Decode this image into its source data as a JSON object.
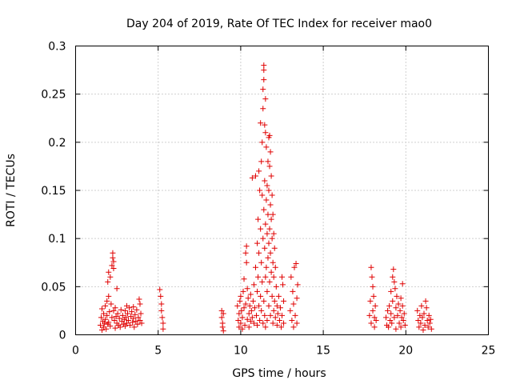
{
  "chart_data": {
    "type": "scatter",
    "title": "Day 204 of 2019, Rate Of TEC Index for receiver mao0",
    "xlabel": "GPS time / hours",
    "ylabel": "ROTI / TECUs",
    "xlim": [
      0,
      25
    ],
    "ylim": [
      0,
      0.3
    ],
    "xticks": [
      0,
      5,
      10,
      15,
      20,
      25
    ],
    "xtick_labels": [
      "0",
      "5",
      "10",
      "15",
      "20",
      "25"
    ],
    "yticks": [
      0,
      0.05,
      0.1,
      0.15,
      0.2,
      0.25,
      0.3
    ],
    "ytick_labels": [
      "0",
      "0.05",
      "0.1",
      "0.15",
      "0.2",
      "0.25",
      "0.3"
    ],
    "grid": true,
    "marker": "+",
    "marker_color": "#e00000",
    "series": [
      {
        "name": "ROTI",
        "points": [
          [
            1.5,
            0.01
          ],
          [
            1.55,
            0.018
          ],
          [
            1.6,
            0.027
          ],
          [
            1.6,
            0.005
          ],
          [
            1.65,
            0.014
          ],
          [
            1.7,
            0.022
          ],
          [
            1.7,
            0.008
          ],
          [
            1.75,
            0.012
          ],
          [
            1.8,
            0.03
          ],
          [
            1.8,
            0.016
          ],
          [
            1.85,
            0.006
          ],
          [
            1.9,
            0.035
          ],
          [
            1.9,
            0.02
          ],
          [
            1.95,
            0.011
          ],
          [
            1.95,
            0.055
          ],
          [
            2.0,
            0.065
          ],
          [
            2.0,
            0.04
          ],
          [
            2.0,
            0.013
          ],
          [
            2.05,
            0.024
          ],
          [
            2.1,
            0.06
          ],
          [
            2.1,
            0.009
          ],
          [
            2.15,
            0.032
          ],
          [
            2.2,
            0.072
          ],
          [
            2.2,
            0.018
          ],
          [
            2.25,
            0.085
          ],
          [
            2.25,
            0.08
          ],
          [
            2.3,
            0.076
          ],
          [
            2.3,
            0.069
          ],
          [
            2.3,
            0.025
          ],
          [
            2.35,
            0.015
          ],
          [
            2.4,
            0.028
          ],
          [
            2.4,
            0.007
          ],
          [
            2.45,
            0.019
          ],
          [
            2.5,
            0.048
          ],
          [
            2.5,
            0.012
          ],
          [
            2.55,
            0.022
          ],
          [
            2.6,
            0.01
          ],
          [
            2.65,
            0.017
          ],
          [
            2.7,
            0.008
          ],
          [
            2.75,
            0.026
          ],
          [
            2.8,
            0.014
          ],
          [
            2.85,
            0.02
          ],
          [
            2.9,
            0.011
          ],
          [
            2.95,
            0.016
          ],
          [
            3.0,
            0.025
          ],
          [
            3.0,
            0.009
          ],
          [
            3.05,
            0.018
          ],
          [
            3.1,
            0.03
          ],
          [
            3.1,
            0.012
          ],
          [
            3.15,
            0.022
          ],
          [
            3.2,
            0.015
          ],
          [
            3.25,
            0.028
          ],
          [
            3.3,
            0.01
          ],
          [
            3.35,
            0.019
          ],
          [
            3.4,
            0.024
          ],
          [
            3.45,
            0.013
          ],
          [
            3.5,
            0.017
          ],
          [
            3.5,
            0.029
          ],
          [
            3.55,
            0.008
          ],
          [
            3.6,
            0.021
          ],
          [
            3.65,
            0.014
          ],
          [
            3.7,
            0.026
          ],
          [
            3.75,
            0.011
          ],
          [
            3.8,
            0.018
          ],
          [
            3.85,
            0.037
          ],
          [
            3.9,
            0.032
          ],
          [
            3.9,
            0.015
          ],
          [
            3.95,
            0.022
          ],
          [
            4.0,
            0.012
          ],
          [
            5.1,
            0.047
          ],
          [
            5.15,
            0.04
          ],
          [
            5.2,
            0.032
          ],
          [
            5.2,
            0.025
          ],
          [
            5.25,
            0.018
          ],
          [
            5.3,
            0.012
          ],
          [
            5.3,
            0.006
          ],
          [
            8.85,
            0.025
          ],
          [
            8.85,
            0.018
          ],
          [
            8.9,
            0.012
          ],
          [
            8.9,
            0.008
          ],
          [
            8.95,
            0.004
          ],
          [
            8.95,
            0.022
          ],
          [
            9.8,
            0.03
          ],
          [
            9.85,
            0.015
          ],
          [
            9.9,
            0.022
          ],
          [
            9.9,
            0.008
          ],
          [
            9.95,
            0.035
          ],
          [
            10.0,
            0.012
          ],
          [
            10.0,
            0.04
          ],
          [
            10.05,
            0.025
          ],
          [
            10.1,
            0.018
          ],
          [
            10.1,
            0.006
          ],
          [
            10.15,
            0.045
          ],
          [
            10.2,
            0.028
          ],
          [
            10.2,
            0.058
          ],
          [
            10.25,
            0.01
          ],
          [
            10.3,
            0.032
          ],
          [
            10.3,
            0.085
          ],
          [
            10.35,
            0.092
          ],
          [
            10.35,
            0.075
          ],
          [
            10.4,
            0.048
          ],
          [
            10.4,
            0.016
          ],
          [
            10.45,
            0.038
          ],
          [
            10.5,
            0.022
          ],
          [
            10.5,
            0.008
          ],
          [
            10.55,
            0.03
          ],
          [
            10.6,
            0.042
          ],
          [
            10.6,
            0.014
          ],
          [
            10.65,
            0.025
          ],
          [
            10.7,
            0.018
          ],
          [
            10.7,
            0.163
          ],
          [
            10.75,
            0.035
          ],
          [
            10.8,
            0.012
          ],
          [
            10.8,
            0.052
          ],
          [
            10.85,
            0.028
          ],
          [
            10.9,
            0.07
          ],
          [
            10.9,
            0.165
          ],
          [
            10.95,
            0.02
          ],
          [
            11.0,
            0.045
          ],
          [
            11.0,
            0.095
          ],
          [
            11.0,
            0.01
          ],
          [
            11.05,
            0.06
          ],
          [
            11.05,
            0.12
          ],
          [
            11.1,
            0.03
          ],
          [
            11.1,
            0.085
          ],
          [
            11.1,
            0.17
          ],
          [
            11.15,
            0.15
          ],
          [
            11.15,
            0.015
          ],
          [
            11.2,
            0.22
          ],
          [
            11.2,
            0.11
          ],
          [
            11.2,
            0.04
          ],
          [
            11.25,
            0.18
          ],
          [
            11.25,
            0.075
          ],
          [
            11.25,
            0.025
          ],
          [
            11.3,
            0.145
          ],
          [
            11.3,
            0.2
          ],
          [
            11.3,
            0.055
          ],
          [
            11.35,
            0.255
          ],
          [
            11.35,
            0.235
          ],
          [
            11.35,
            0.1
          ],
          [
            11.35,
            0.012
          ],
          [
            11.4,
            0.28
          ],
          [
            11.4,
            0.275
          ],
          [
            11.4,
            0.265
          ],
          [
            11.4,
            0.13
          ],
          [
            11.4,
            0.035
          ],
          [
            11.45,
            0.218
          ],
          [
            11.45,
            0.16
          ],
          [
            11.45,
            0.09
          ],
          [
            11.45,
            0.02
          ],
          [
            11.5,
            0.245
          ],
          [
            11.5,
            0.21
          ],
          [
            11.5,
            0.115
          ],
          [
            11.5,
            0.06
          ],
          [
            11.5,
            0.008
          ],
          [
            11.55,
            0.195
          ],
          [
            11.55,
            0.14
          ],
          [
            11.55,
            0.07
          ],
          [
            11.6,
            0.155
          ],
          [
            11.6,
            0.105
          ],
          [
            11.6,
            0.045
          ],
          [
            11.6,
            0.015
          ],
          [
            11.65,
            0.18
          ],
          [
            11.65,
            0.125
          ],
          [
            11.65,
            0.08
          ],
          [
            11.7,
            0.205
          ],
          [
            11.7,
            0.15
          ],
          [
            11.7,
            0.095
          ],
          [
            11.7,
            0.03
          ],
          [
            11.75,
            0.207
          ],
          [
            11.75,
            0.175
          ],
          [
            11.75,
            0.11
          ],
          [
            11.75,
            0.055
          ],
          [
            11.8,
            0.19
          ],
          [
            11.8,
            0.135
          ],
          [
            11.8,
            0.085
          ],
          [
            11.8,
            0.02
          ],
          [
            11.85,
            0.165
          ],
          [
            11.85,
            0.12
          ],
          [
            11.85,
            0.065
          ],
          [
            11.9,
            0.145
          ],
          [
            11.9,
            0.1
          ],
          [
            11.9,
            0.04
          ],
          [
            11.95,
            0.125
          ],
          [
            11.95,
            0.075
          ],
          [
            11.95,
            0.012
          ],
          [
            12.0,
            0.105
          ],
          [
            12.0,
            0.06
          ],
          [
            12.0,
            0.025
          ],
          [
            12.05,
            0.09
          ],
          [
            12.05,
            0.035
          ],
          [
            12.1,
            0.07
          ],
          [
            12.1,
            0.018
          ],
          [
            12.15,
            0.05
          ],
          [
            12.2,
            0.03
          ],
          [
            12.2,
            0.01
          ],
          [
            12.25,
            0.022
          ],
          [
            12.3,
            0.04
          ],
          [
            12.35,
            0.015
          ],
          [
            12.4,
            0.028
          ],
          [
            12.45,
            0.008
          ],
          [
            12.5,
            0.06
          ],
          [
            12.5,
            0.02
          ],
          [
            12.55,
            0.052
          ],
          [
            12.6,
            0.012
          ],
          [
            12.6,
            0.035
          ],
          [
            13.0,
            0.025
          ],
          [
            13.05,
            0.06
          ],
          [
            13.1,
            0.015
          ],
          [
            13.15,
            0.045
          ],
          [
            13.2,
            0.032
          ],
          [
            13.2,
            0.008
          ],
          [
            13.25,
            0.07
          ],
          [
            13.3,
            0.02
          ],
          [
            13.35,
            0.074
          ],
          [
            13.4,
            0.038
          ],
          [
            13.4,
            0.012
          ],
          [
            13.45,
            0.052
          ],
          [
            17.8,
            0.02
          ],
          [
            17.85,
            0.035
          ],
          [
            17.9,
            0.07
          ],
          [
            17.9,
            0.012
          ],
          [
            17.95,
            0.06
          ],
          [
            18.0,
            0.05
          ],
          [
            18.0,
            0.025
          ],
          [
            18.05,
            0.04
          ],
          [
            18.1,
            0.018
          ],
          [
            18.1,
            0.008
          ],
          [
            18.15,
            0.03
          ],
          [
            18.2,
            0.015
          ],
          [
            18.8,
            0.018
          ],
          [
            18.85,
            0.01
          ],
          [
            18.9,
            0.025
          ],
          [
            18.95,
            0.008
          ],
          [
            19.0,
            0.03
          ],
          [
            19.05,
            0.015
          ],
          [
            19.1,
            0.045
          ],
          [
            19.1,
            0.022
          ],
          [
            19.15,
            0.012
          ],
          [
            19.2,
            0.06
          ],
          [
            19.2,
            0.035
          ],
          [
            19.25,
            0.068
          ],
          [
            19.3,
            0.055
          ],
          [
            19.3,
            0.018
          ],
          [
            19.35,
            0.048
          ],
          [
            19.4,
            0.028
          ],
          [
            19.4,
            0.006
          ],
          [
            19.45,
            0.04
          ],
          [
            19.5,
            0.02
          ],
          [
            19.55,
            0.032
          ],
          [
            19.6,
            0.012
          ],
          [
            19.65,
            0.025
          ],
          [
            19.7,
            0.038
          ],
          [
            19.7,
            0.008
          ],
          [
            19.75,
            0.018
          ],
          [
            19.8,
            0.053
          ],
          [
            19.8,
            0.03
          ],
          [
            19.85,
            0.015
          ],
          [
            19.9,
            0.022
          ],
          [
            19.95,
            0.01
          ],
          [
            20.7,
            0.025
          ],
          [
            20.75,
            0.015
          ],
          [
            20.8,
            0.008
          ],
          [
            20.85,
            0.02
          ],
          [
            20.9,
            0.012
          ],
          [
            20.95,
            0.03
          ],
          [
            21.0,
            0.018
          ],
          [
            21.05,
            0.005
          ],
          [
            21.1,
            0.022
          ],
          [
            21.15,
            0.01
          ],
          [
            21.2,
            0.035
          ],
          [
            21.25,
            0.028
          ],
          [
            21.3,
            0.015
          ],
          [
            21.35,
            0.008
          ],
          [
            21.4,
            0.02
          ],
          [
            21.45,
            0.012
          ],
          [
            21.5,
            0.016
          ],
          [
            21.55,
            0.006
          ]
        ]
      }
    ]
  }
}
